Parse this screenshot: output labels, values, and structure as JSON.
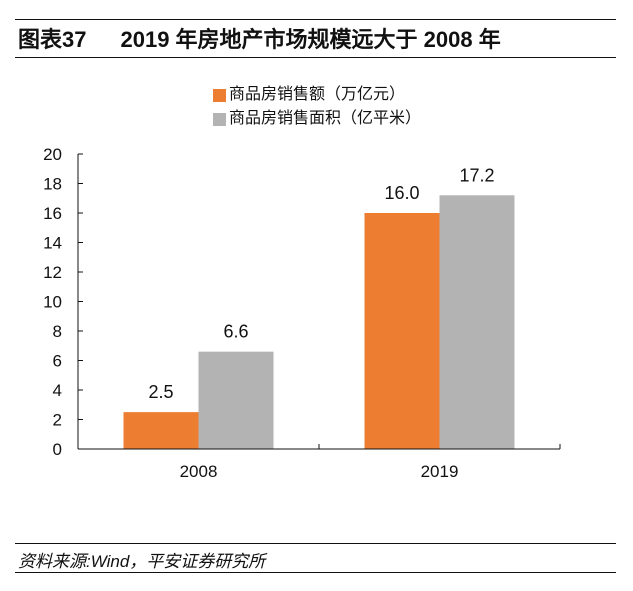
{
  "header": {
    "figure_number": "图表37",
    "title": "2019 年房地产市场规模远大于 2008 年"
  },
  "footer": {
    "source": "资料来源:Wind，平安证券研究所"
  },
  "chart_data": {
    "type": "bar",
    "title": "2019 年房地产市场规模远大于 2008 年",
    "xlabel": "",
    "ylabel": "",
    "categories": [
      "2008",
      "2019"
    ],
    "series": [
      {
        "name": "商品房销售额（万亿元）",
        "color": "#ED7D31",
        "values": [
          2.5,
          16.0
        ],
        "labels": [
          "2.5",
          "16.0"
        ]
      },
      {
        "name": "商品房销售面积（亿平米）",
        "color": "#B3B3B3",
        "values": [
          6.6,
          17.2
        ],
        "labels": [
          "6.6",
          "17.2"
        ]
      }
    ],
    "ylim": [
      0,
      20
    ],
    "yticks": [
      0,
      2,
      4,
      6,
      8,
      10,
      12,
      14,
      16,
      18,
      20
    ],
    "grid": false,
    "legend_position": "top-center"
  }
}
